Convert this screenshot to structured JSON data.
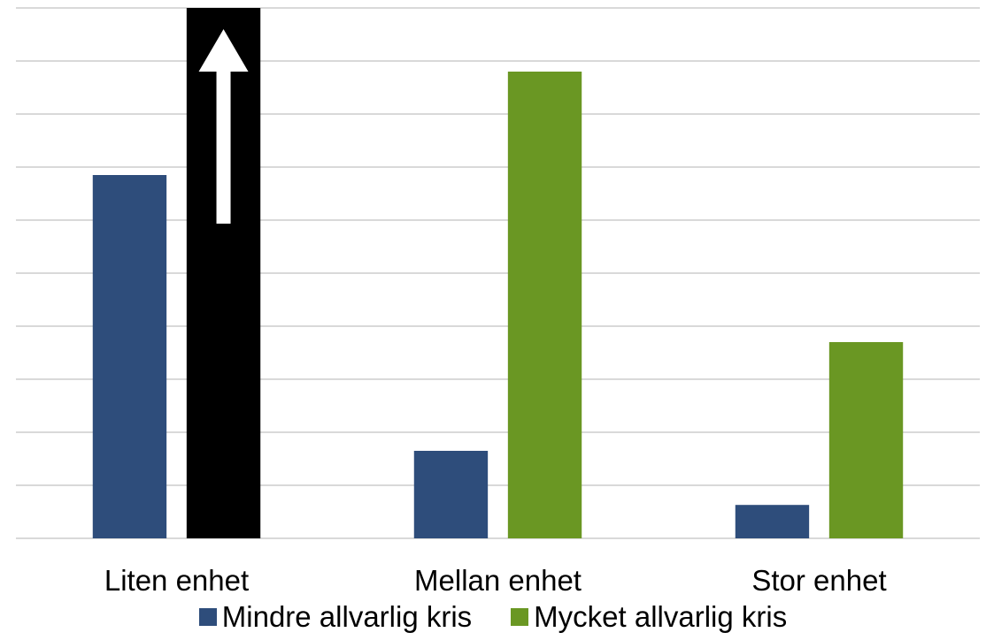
{
  "chart_data": {
    "type": "bar",
    "categories": [
      "Liten enhet",
      "Mellan enhet",
      "Stor enhet"
    ],
    "series": [
      {
        "name": "Mindre allvarlig kris",
        "color": "#2e4d7b",
        "values": [
          6.85,
          1.65,
          0.63
        ]
      },
      {
        "name": "Mycket allvarlig kris",
        "color": "#6a9723",
        "values": [
          10,
          8.8,
          3.7
        ],
        "highlight": [
          true,
          false,
          false
        ],
        "highlight_color": "#000000"
      }
    ],
    "annotation": {
      "type": "arrow-up-icon",
      "target": "Liten enhet / Mycket allvarlig kris",
      "color": "#ffffff"
    },
    "ylim": [
      0,
      10
    ],
    "y_gridlines": 10,
    "grid": true,
    "y_tick_labels_shown": false,
    "legend": "bottom"
  }
}
